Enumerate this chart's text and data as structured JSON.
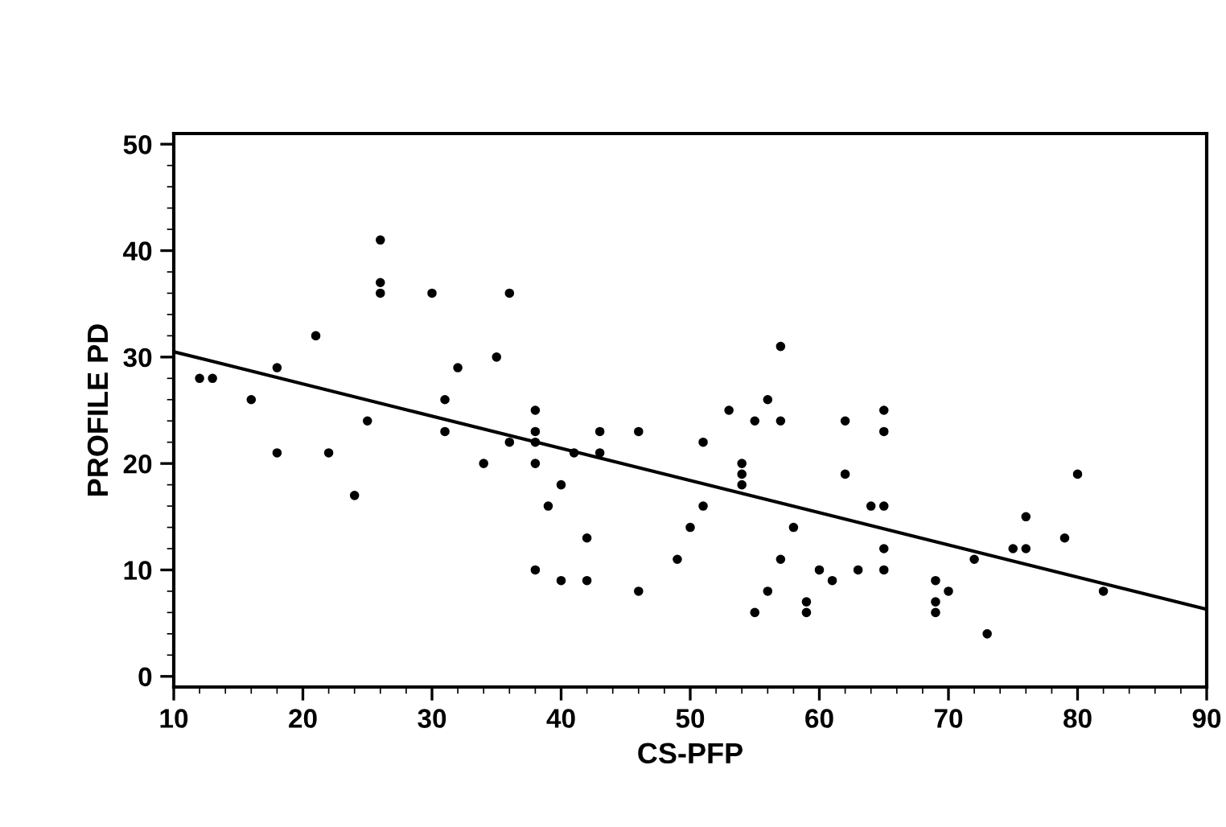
{
  "chart_data": {
    "type": "scatter",
    "xlabel": "CS-PFP",
    "ylabel": "PROFILE PD",
    "xlim": [
      10,
      90
    ],
    "ylim": [
      -1,
      51
    ],
    "xticks": [
      10,
      20,
      30,
      40,
      50,
      60,
      70,
      80,
      90
    ],
    "yticks": [
      0,
      10,
      20,
      30,
      40,
      50
    ],
    "grid": false,
    "series": [
      {
        "color": "#000000",
        "marker": "circle",
        "x": [
          12,
          13,
          16,
          18,
          18,
          21,
          22,
          24,
          25,
          26,
          26,
          26,
          30,
          31,
          31,
          32,
          34,
          35,
          36,
          36,
          38,
          38,
          38,
          38,
          38,
          39,
          40,
          40,
          41,
          42,
          42,
          43,
          43,
          46,
          46,
          49,
          50,
          51,
          51,
          53,
          54,
          54,
          54,
          55,
          55,
          56,
          56,
          57,
          57,
          57,
          58,
          59,
          59,
          60,
          61,
          62,
          62,
          63,
          64,
          65,
          65,
          65,
          65,
          65,
          69,
          69,
          69,
          70,
          72,
          73,
          75,
          76,
          76,
          79,
          80,
          82
        ],
        "values": [
          28,
          28,
          26,
          29,
          21,
          32,
          21,
          17,
          24,
          41,
          37,
          36,
          36,
          26,
          23,
          29,
          20,
          30,
          36,
          22,
          25,
          23,
          22,
          20,
          10,
          16,
          18,
          9,
          21,
          13,
          9,
          23,
          21,
          23,
          8,
          11,
          14,
          22,
          16,
          25,
          20,
          19,
          18,
          24,
          6,
          26,
          8,
          31,
          24,
          11,
          14,
          7,
          6,
          10,
          9,
          24,
          19,
          10,
          16,
          25,
          23,
          16,
          12,
          10,
          9,
          7,
          6,
          8,
          11,
          4,
          12,
          12,
          15,
          13,
          19,
          8
        ]
      },
      {
        "type": "line",
        "color": "#000000",
        "line_style": "solid",
        "x": [
          10,
          90
        ],
        "values": [
          30.5,
          6.3
        ]
      }
    ]
  }
}
